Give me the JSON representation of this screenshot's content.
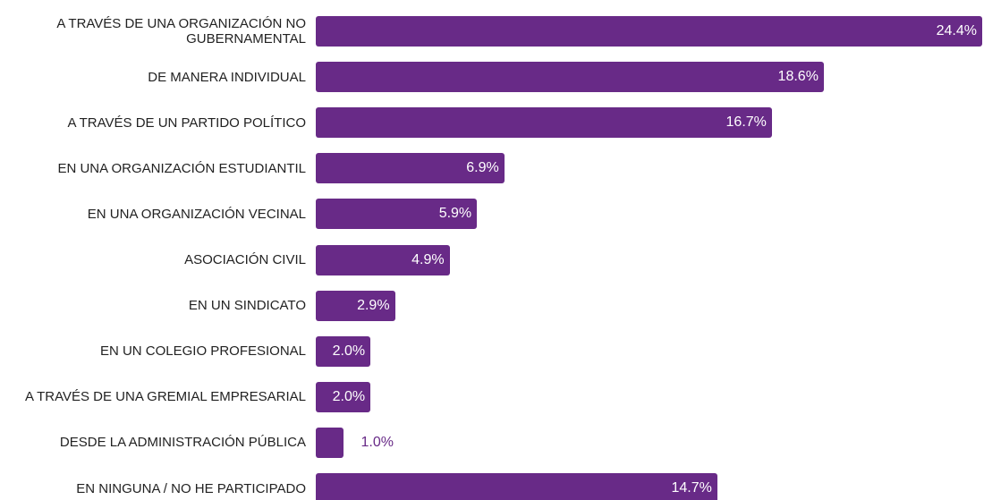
{
  "chart_data": {
    "type": "bar",
    "orientation": "horizontal",
    "color": "#682a87",
    "categories": [
      "A TRAVÉS DE UNA ORGANIZACIÓN NO GUBERNAMENTAL",
      "DE MANERA INDIVIDUAL",
      "A TRAVÉS DE UN PARTIDO POLÍTICO",
      "EN UNA ORGANIZACIÓN ESTUDIANTIL",
      "EN UNA ORGANIZACIÓN VECINAL",
      "ASOCIACIÓN CIVIL",
      "EN UN SINDICATO",
      "EN UN COLEGIO PROFESIONAL",
      "A TRAVÉS DE UNA GREMIAL EMPRESARIAL",
      "DESDE LA ADMINISTRACIÓN PÚBLICA",
      "EN NINGUNA / NO HE PARTICIPADO"
    ],
    "values": [
      24.4,
      18.6,
      16.7,
      6.9,
      5.9,
      4.9,
      2.9,
      2.0,
      2.0,
      1.0,
      14.7
    ],
    "value_labels": [
      "24.4%",
      "18.6%",
      "16.7%",
      "6.9%",
      "5.9%",
      "4.9%",
      "2.9%",
      "2.0%",
      "2.0%",
      "1.0%",
      "14.7%"
    ]
  }
}
